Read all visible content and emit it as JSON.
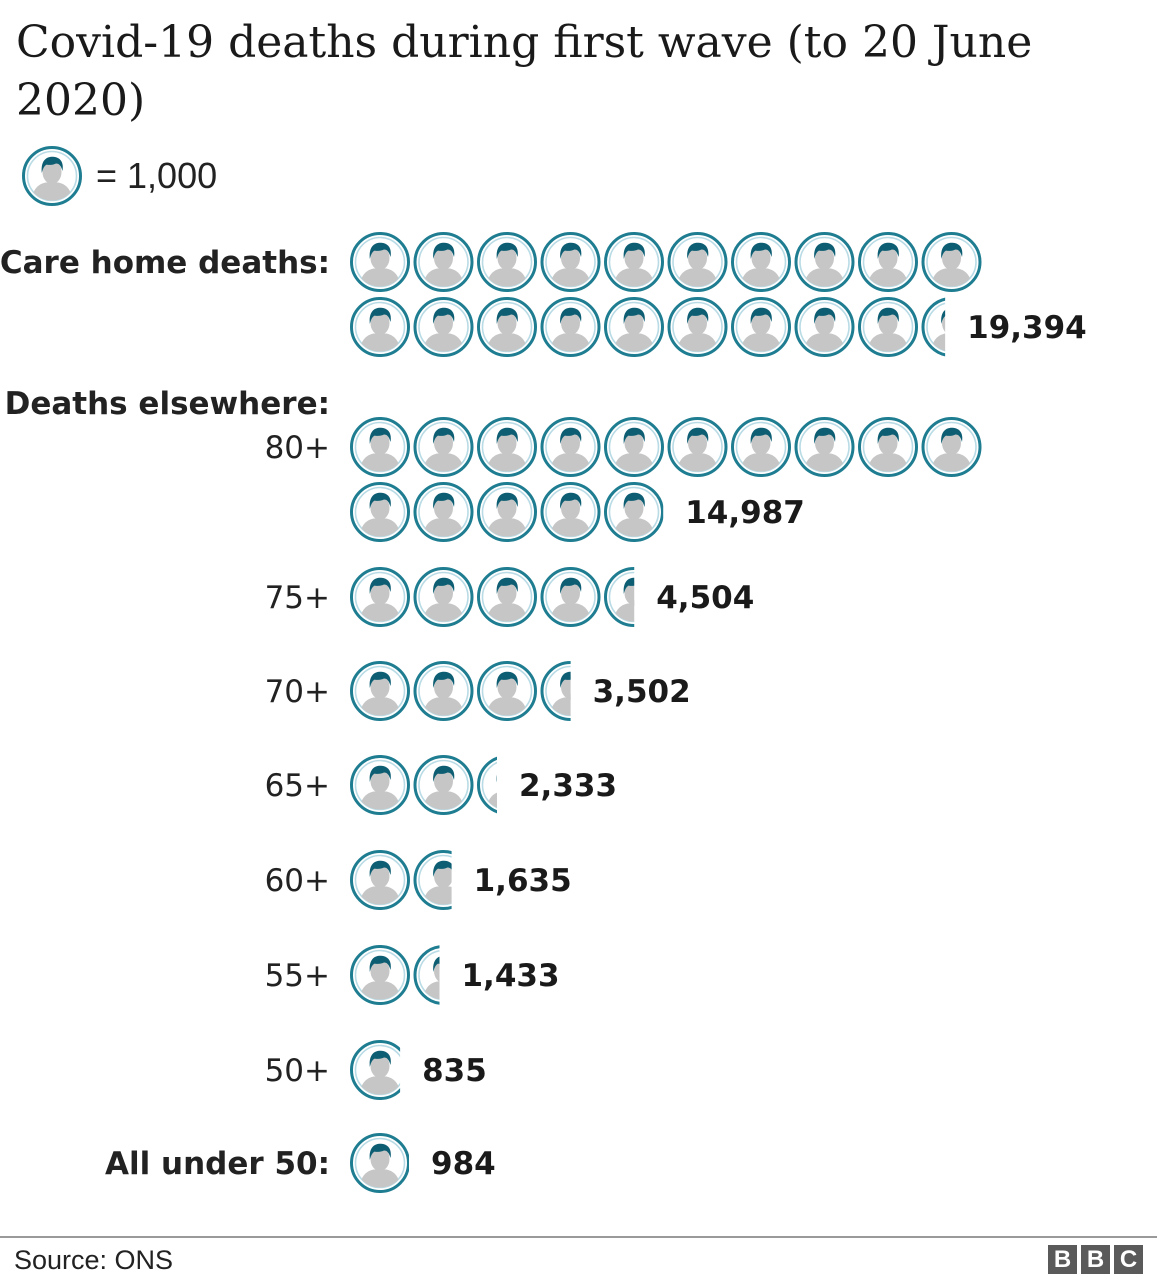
{
  "title": "Covid-19 deaths during first wave (to 20 June 2020)",
  "legend": {
    "unit_text": "= 1,000",
    "unit_value": 1000,
    "icon": "person-icon"
  },
  "colors": {
    "icon_ring": "#1f7d91",
    "icon_inner_ring": "#b9dbe5",
    "icon_hair": "#0e5e73",
    "icon_body": "#c6c6c6",
    "icon_bg": "#ffffff"
  },
  "chart_data": {
    "type": "pictogram",
    "title": "Covid-19 deaths during first wave (to 20 June 2020)",
    "unit": 1000,
    "section_label": "Deaths elsewhere:",
    "rows": [
      {
        "label": "Care home deaths:",
        "value": 19394,
        "value_label": "19,394"
      },
      {
        "label": "80+",
        "value": 14987,
        "value_label": "14,987"
      },
      {
        "label": "75+",
        "value": 4504,
        "value_label": "4,504"
      },
      {
        "label": "70+",
        "value": 3502,
        "value_label": "3,502"
      },
      {
        "label": "65+",
        "value": 2333,
        "value_label": "2,333"
      },
      {
        "label": "60+",
        "value": 1635,
        "value_label": "1,635"
      },
      {
        "label": "55+",
        "value": 1433,
        "value_label": "1,433"
      },
      {
        "label": "50+",
        "value": 835,
        "value_label": "835"
      },
      {
        "label": "All under 50:",
        "value": 984,
        "value_label": "984"
      }
    ]
  },
  "source": "Source: ONS",
  "logo": [
    "B",
    "B",
    "C"
  ]
}
